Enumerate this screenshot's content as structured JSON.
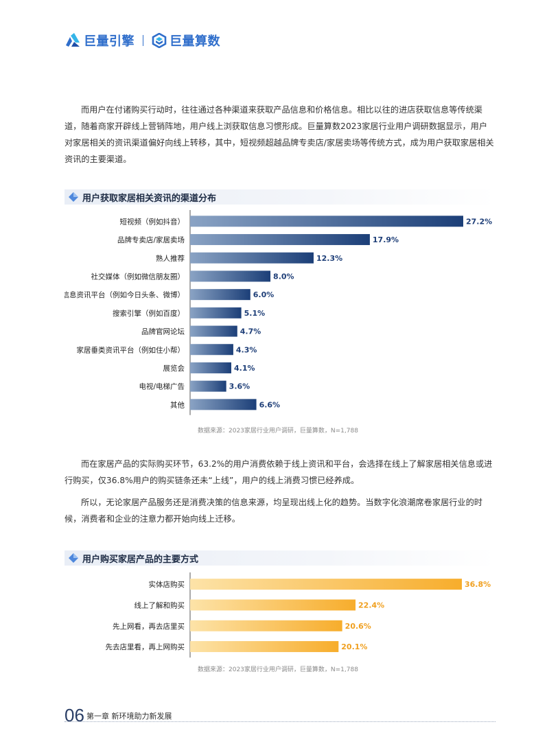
{
  "header": {
    "brand1": "巨量引擎",
    "brand2": "巨量算数"
  },
  "paragraphs": {
    "p1": "而用户在付诸购买行动时，往往通过各种渠道来获取产品信息和价格信息。相比以往的进店获取信息等传统渠道，随着商家开辟线上营销阵地，用户线上浏获取信息习惯形成。巨量算数2023家居行业用户调研数据显示，用户对家居相关的资讯渠道偏好向线上转移，其中，短视频超越品牌专卖店/家居卖场等传统方式，成为用户获取家居相关资讯的主要渠道。",
    "p2": "而在家居产品的实际购买环节，63.2%的用户消费依赖于线上资讯和平台，会选择在线上了解家居相关信息或进行购买，仅36.8%用户的购买链条还未“上线”，用户的线上消费习惯已经养成。",
    "p3": "所以，无论家居产品服务还是消费决策的信息来源，均呈现出线上化的趋势。当数字化浪潮席卷家居行业的时候，消费者和企业的注意力都开始向线上迁移。"
  },
  "chart_data": [
    {
      "type": "bar",
      "orientation": "horizontal",
      "title": "用户获取家居相关资讯的渠道分布",
      "categories": [
        "短视频（例如抖音）",
        "品牌专卖店/家居卖场",
        "熟人推荐",
        "社交媒体（例如微信朋友圈）",
        "信息资讯平台（例如今日头条、微博）",
        "搜索引擎（例如百度）",
        "品牌官网论坛",
        "家居垂类资讯平台（例如住小帮）",
        "展览会",
        "电视/电梯广告",
        "其他"
      ],
      "values": [
        27.2,
        17.9,
        12.3,
        8.0,
        6.0,
        5.1,
        4.7,
        4.3,
        4.1,
        3.6,
        6.6
      ],
      "labels": [
        "27.2%",
        "17.9%",
        "12.3%",
        "8.0%",
        "6.0%",
        "5.1%",
        "4.7%",
        "4.3%",
        "4.1%",
        "3.6%",
        "6.6%"
      ],
      "source": "数据来源：2023家居行业用户调研，巨量算数，N=1,788",
      "color_start": "#8aa3c4",
      "color_end": "#1c3f78",
      "label_color": "#1f3f78"
    },
    {
      "type": "bar",
      "orientation": "horizontal",
      "title": "用户购买家居产品的主要方式",
      "categories": [
        "实体店购买",
        "线上了解和购买",
        "先上网看，再去店里买",
        "先去店里看，再上网购买"
      ],
      "values": [
        36.8,
        22.4,
        20.6,
        20.1
      ],
      "labels": [
        "36.8%",
        "22.4%",
        "20.6%",
        "20.1%"
      ],
      "source": "数据来源：2023家居行业用户调研，巨量算数，N=1,788",
      "color_start": "#fde3a8",
      "color_end": "#f7ad2c",
      "label_color": "#f0a020"
    }
  ],
  "footer": {
    "page_number": "06",
    "chapter": "第一章  新环境助力新发展"
  }
}
